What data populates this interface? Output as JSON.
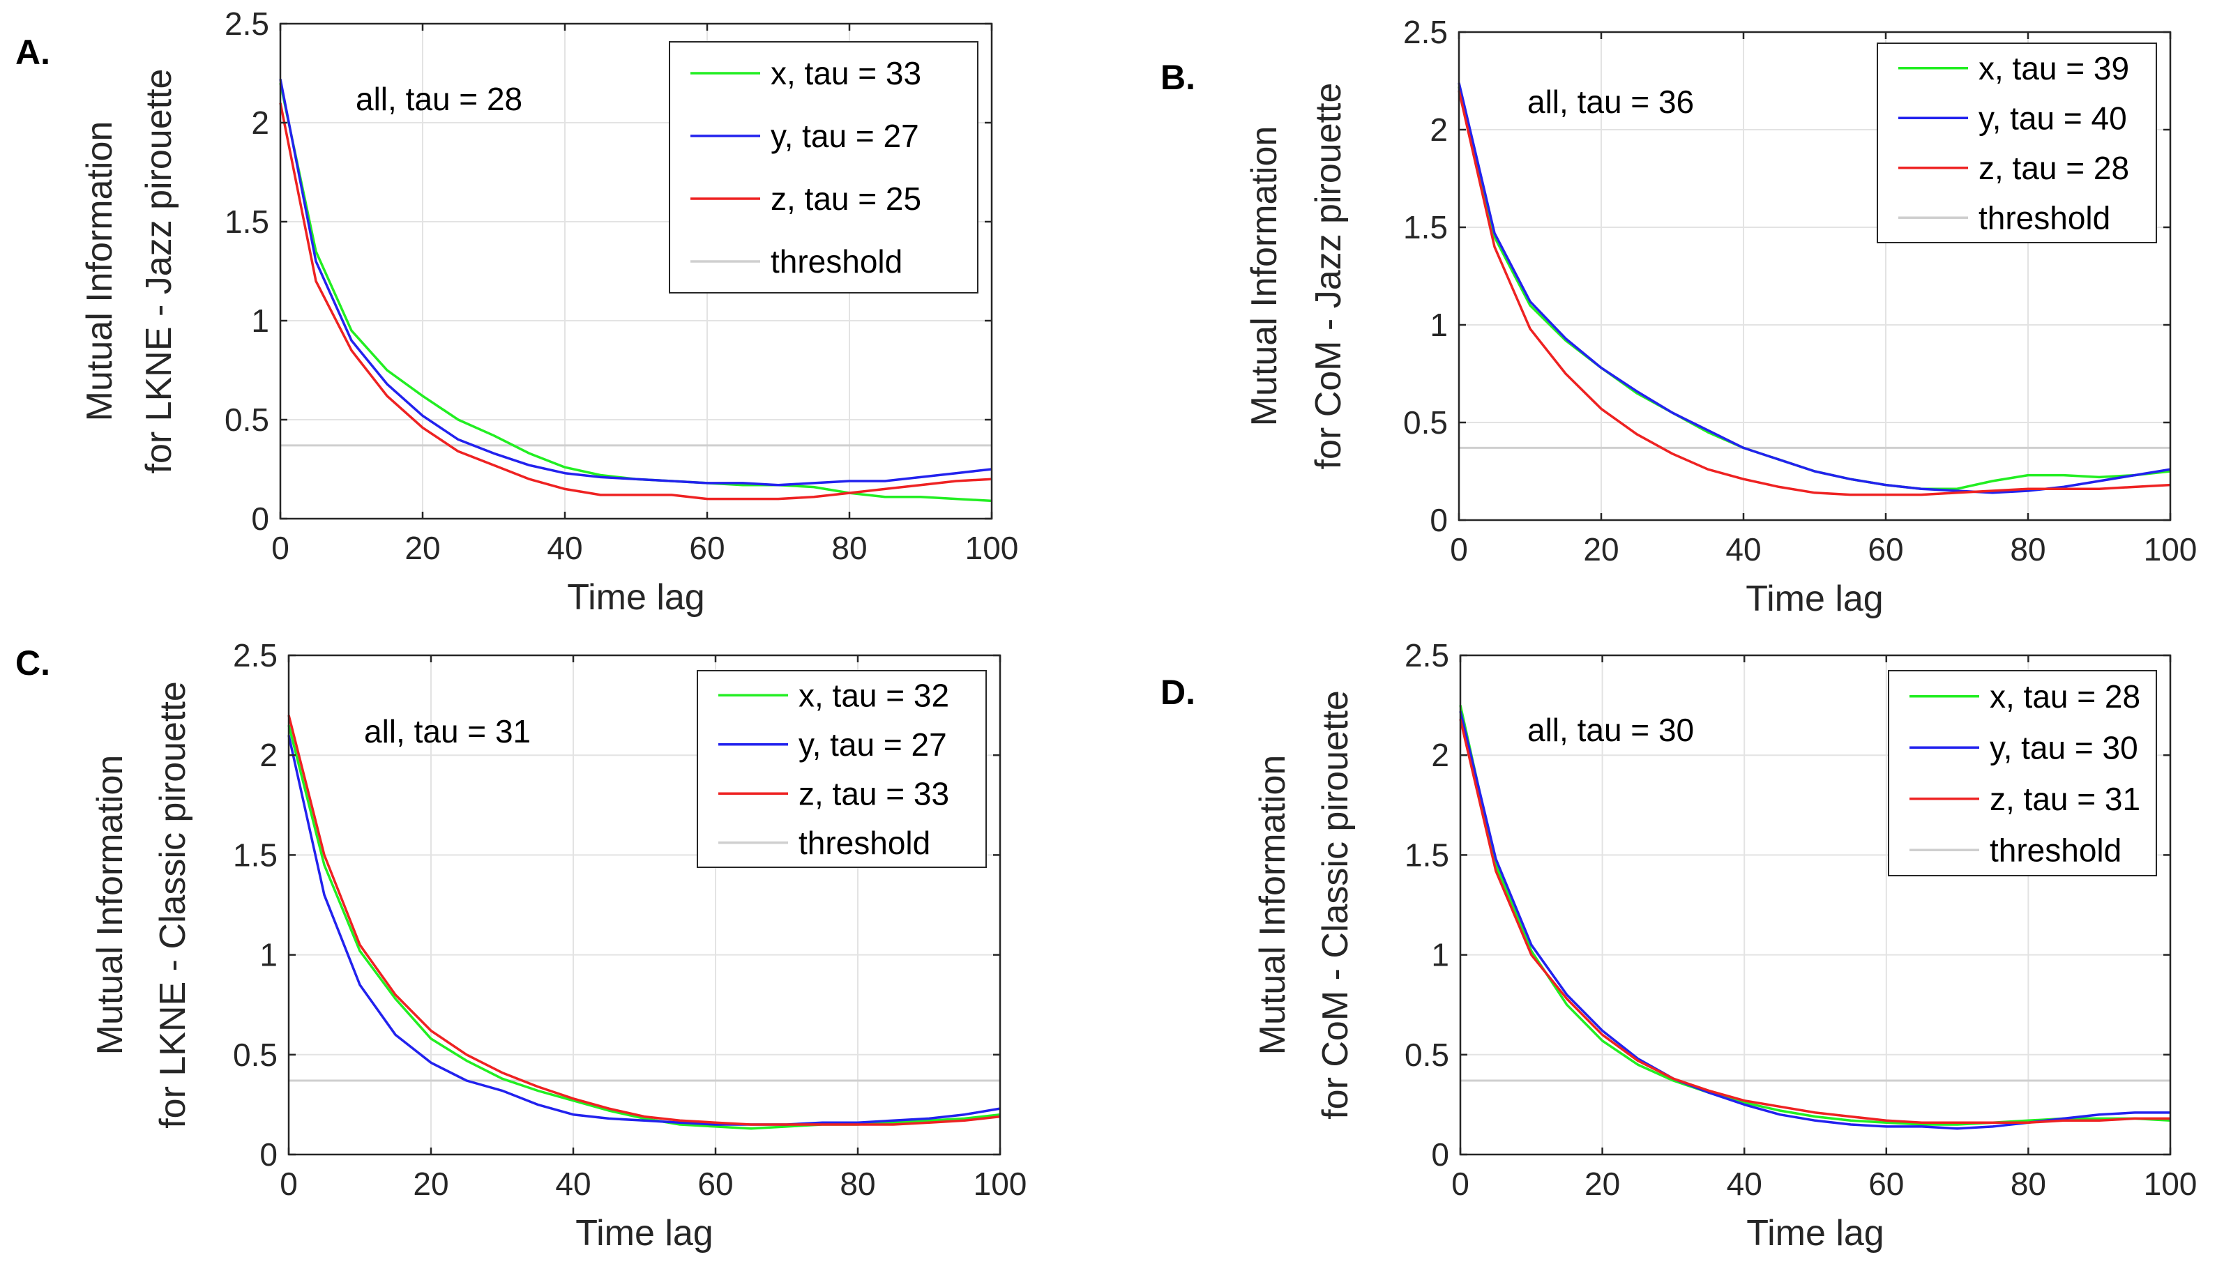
{
  "chart_data": [
    {
      "panel_label": "A.",
      "type": "line",
      "title": "",
      "xlabel": "Time lag",
      "ylabel": [
        "Mutual Information",
        "for LKNE - Jazz pirouette"
      ],
      "xlim": [
        0,
        100
      ],
      "ylim": [
        0,
        2.5
      ],
      "xticks": [
        0,
        20,
        40,
        60,
        80,
        100
      ],
      "yticks": [
        0,
        0.5,
        1,
        1.5,
        2,
        2.5
      ],
      "xtick_labels": [
        "0",
        "20",
        "40",
        "60",
        "80",
        "100"
      ],
      "ytick_labels": [
        "0",
        "0.5",
        "1",
        "1.5",
        "2",
        "2.5"
      ],
      "grid": true,
      "legend_position": "top-right",
      "annotation": "all, tau = 28",
      "threshold": 0.37,
      "threshold_label": "threshold",
      "series": [
        {
          "name": "x, tau = 33",
          "color": "#22ee22",
          "x": [
            0,
            5,
            10,
            15,
            20,
            25,
            30,
            35,
            40,
            45,
            50,
            55,
            60,
            65,
            70,
            75,
            80,
            85,
            90,
            95,
            100
          ],
          "values": [
            2.2,
            1.35,
            0.95,
            0.75,
            0.62,
            0.5,
            0.42,
            0.33,
            0.26,
            0.22,
            0.2,
            0.19,
            0.18,
            0.17,
            0.17,
            0.16,
            0.13,
            0.11,
            0.11,
            0.1,
            0.09
          ]
        },
        {
          "name": "y, tau = 27",
          "color": "#2222ee",
          "x": [
            0,
            5,
            10,
            15,
            20,
            25,
            30,
            35,
            40,
            45,
            50,
            55,
            60,
            65,
            70,
            75,
            80,
            85,
            90,
            95,
            100
          ],
          "values": [
            2.22,
            1.3,
            0.9,
            0.68,
            0.52,
            0.4,
            0.33,
            0.27,
            0.23,
            0.21,
            0.2,
            0.19,
            0.18,
            0.18,
            0.17,
            0.18,
            0.19,
            0.19,
            0.21,
            0.23,
            0.25
          ]
        },
        {
          "name": "z, tau = 25",
          "color": "#ee2222",
          "x": [
            0,
            5,
            10,
            15,
            20,
            25,
            30,
            35,
            40,
            45,
            50,
            55,
            60,
            65,
            70,
            75,
            80,
            85,
            90,
            95,
            100
          ],
          "values": [
            2.1,
            1.2,
            0.85,
            0.62,
            0.46,
            0.34,
            0.27,
            0.2,
            0.15,
            0.12,
            0.12,
            0.12,
            0.1,
            0.1,
            0.1,
            0.11,
            0.13,
            0.15,
            0.17,
            0.19,
            0.2
          ]
        }
      ]
    },
    {
      "panel_label": "B.",
      "type": "line",
      "title": "",
      "xlabel": "Time lag",
      "ylabel": [
        "Mutual Information",
        "for CoM - Jazz pirouette"
      ],
      "xlim": [
        0,
        100
      ],
      "ylim": [
        0,
        2.5
      ],
      "xticks": [
        0,
        20,
        40,
        60,
        80,
        100
      ],
      "yticks": [
        0,
        0.5,
        1,
        1.5,
        2,
        2.5
      ],
      "xtick_labels": [
        "0",
        "20",
        "40",
        "60",
        "80",
        "100"
      ],
      "ytick_labels": [
        "0",
        "0.5",
        "1",
        "1.5",
        "2",
        "2.5"
      ],
      "grid": true,
      "legend_position": "top-right",
      "annotation": "all, tau = 36",
      "threshold": 0.37,
      "threshold_label": "threshold",
      "series": [
        {
          "name": "x, tau = 39",
          "color": "#22ee22",
          "x": [
            0,
            5,
            10,
            15,
            20,
            25,
            30,
            35,
            40,
            45,
            50,
            55,
            60,
            65,
            70,
            75,
            80,
            85,
            90,
            95,
            100
          ],
          "values": [
            2.22,
            1.45,
            1.1,
            0.92,
            0.78,
            0.65,
            0.55,
            0.45,
            0.37,
            0.31,
            0.25,
            0.21,
            0.18,
            0.16,
            0.16,
            0.2,
            0.23,
            0.23,
            0.22,
            0.23,
            0.25
          ]
        },
        {
          "name": "y, tau = 40",
          "color": "#2222ee",
          "x": [
            0,
            5,
            10,
            15,
            20,
            25,
            30,
            35,
            40,
            45,
            50,
            55,
            60,
            65,
            70,
            75,
            80,
            85,
            90,
            95,
            100
          ],
          "values": [
            2.24,
            1.47,
            1.12,
            0.93,
            0.78,
            0.66,
            0.55,
            0.46,
            0.37,
            0.31,
            0.25,
            0.21,
            0.18,
            0.16,
            0.15,
            0.14,
            0.15,
            0.17,
            0.2,
            0.23,
            0.26
          ]
        },
        {
          "name": "z, tau = 28",
          "color": "#ee2222",
          "x": [
            0,
            5,
            10,
            15,
            20,
            25,
            30,
            35,
            40,
            45,
            50,
            55,
            60,
            65,
            70,
            75,
            80,
            85,
            90,
            95,
            100
          ],
          "values": [
            2.2,
            1.4,
            0.98,
            0.75,
            0.57,
            0.44,
            0.34,
            0.26,
            0.21,
            0.17,
            0.14,
            0.13,
            0.13,
            0.13,
            0.14,
            0.15,
            0.16,
            0.16,
            0.16,
            0.17,
            0.18
          ]
        }
      ]
    },
    {
      "panel_label": "C.",
      "type": "line",
      "title": "",
      "xlabel": "Time lag",
      "ylabel": [
        "Mutual Information",
        "for LKNE - Classic pirouette"
      ],
      "xlim": [
        0,
        100
      ],
      "ylim": [
        0,
        2.5
      ],
      "xticks": [
        0,
        20,
        40,
        60,
        80,
        100
      ],
      "yticks": [
        0,
        0.5,
        1,
        1.5,
        2,
        2.5
      ],
      "xtick_labels": [
        "0",
        "20",
        "40",
        "60",
        "80",
        "100"
      ],
      "ytick_labels": [
        "0",
        "0.5",
        "1",
        "1.5",
        "2",
        "2.5"
      ],
      "grid": true,
      "legend_position": "top-right",
      "annotation": "all, tau = 31",
      "threshold": 0.37,
      "threshold_label": "threshold",
      "series": [
        {
          "name": "x, tau = 32",
          "color": "#22ee22",
          "x": [
            0,
            5,
            10,
            15,
            20,
            25,
            30,
            35,
            40,
            45,
            50,
            55,
            60,
            65,
            70,
            75,
            80,
            85,
            90,
            95,
            100
          ],
          "values": [
            2.15,
            1.45,
            1.02,
            0.78,
            0.58,
            0.47,
            0.38,
            0.32,
            0.27,
            0.22,
            0.18,
            0.15,
            0.14,
            0.13,
            0.14,
            0.15,
            0.15,
            0.16,
            0.17,
            0.18,
            0.2
          ]
        },
        {
          "name": "y, tau = 27",
          "color": "#2222ee",
          "x": [
            0,
            5,
            10,
            15,
            20,
            25,
            30,
            35,
            40,
            45,
            50,
            55,
            60,
            65,
            70,
            75,
            80,
            85,
            90,
            95,
            100
          ],
          "values": [
            2.1,
            1.3,
            0.85,
            0.6,
            0.46,
            0.37,
            0.32,
            0.25,
            0.2,
            0.18,
            0.17,
            0.16,
            0.15,
            0.15,
            0.15,
            0.16,
            0.16,
            0.17,
            0.18,
            0.2,
            0.23
          ]
        },
        {
          "name": "z, tau = 33",
          "color": "#ee2222",
          "x": [
            0,
            5,
            10,
            15,
            20,
            25,
            30,
            35,
            40,
            45,
            50,
            55,
            60,
            65,
            70,
            75,
            80,
            85,
            90,
            95,
            100
          ],
          "values": [
            2.2,
            1.5,
            1.05,
            0.8,
            0.62,
            0.5,
            0.41,
            0.34,
            0.28,
            0.23,
            0.19,
            0.17,
            0.16,
            0.15,
            0.15,
            0.15,
            0.15,
            0.15,
            0.16,
            0.17,
            0.19
          ]
        }
      ]
    },
    {
      "panel_label": "D.",
      "type": "line",
      "title": "",
      "xlabel": "Time lag",
      "ylabel": [
        "Mutual Information",
        "for CoM - Classic pirouette"
      ],
      "xlim": [
        0,
        100
      ],
      "ylim": [
        0,
        2.5
      ],
      "xticks": [
        0,
        20,
        40,
        60,
        80,
        100
      ],
      "yticks": [
        0,
        0.5,
        1,
        1.5,
        2,
        2.5
      ],
      "xtick_labels": [
        "0",
        "20",
        "40",
        "60",
        "80",
        "100"
      ],
      "ytick_labels": [
        "0",
        "0.5",
        "1",
        "1.5",
        "2",
        "2.5"
      ],
      "grid": true,
      "legend_position": "top-right",
      "annotation": "all, tau = 30",
      "threshold": 0.37,
      "threshold_label": "threshold",
      "series": [
        {
          "name": "x, tau = 28",
          "color": "#22ee22",
          "x": [
            0,
            5,
            10,
            15,
            20,
            25,
            30,
            35,
            40,
            45,
            50,
            55,
            60,
            65,
            70,
            75,
            80,
            85,
            90,
            95,
            100
          ],
          "values": [
            2.25,
            1.45,
            1.02,
            0.75,
            0.57,
            0.45,
            0.37,
            0.31,
            0.26,
            0.22,
            0.19,
            0.17,
            0.16,
            0.15,
            0.15,
            0.16,
            0.17,
            0.18,
            0.18,
            0.18,
            0.17
          ]
        },
        {
          "name": "y, tau = 30",
          "color": "#2222ee",
          "x": [
            0,
            5,
            10,
            15,
            20,
            25,
            30,
            35,
            40,
            45,
            50,
            55,
            60,
            65,
            70,
            75,
            80,
            85,
            90,
            95,
            100
          ],
          "values": [
            2.22,
            1.48,
            1.05,
            0.8,
            0.62,
            0.48,
            0.38,
            0.31,
            0.25,
            0.2,
            0.17,
            0.15,
            0.14,
            0.14,
            0.13,
            0.14,
            0.16,
            0.18,
            0.2,
            0.21,
            0.21
          ]
        },
        {
          "name": "z, tau = 31",
          "color": "#ee2222",
          "x": [
            0,
            5,
            10,
            15,
            20,
            25,
            30,
            35,
            40,
            45,
            50,
            55,
            60,
            65,
            70,
            75,
            80,
            85,
            90,
            95,
            100
          ],
          "values": [
            2.18,
            1.42,
            1.0,
            0.78,
            0.6,
            0.47,
            0.38,
            0.32,
            0.27,
            0.24,
            0.21,
            0.19,
            0.17,
            0.16,
            0.16,
            0.16,
            0.16,
            0.17,
            0.17,
            0.18,
            0.18
          ]
        }
      ]
    }
  ]
}
